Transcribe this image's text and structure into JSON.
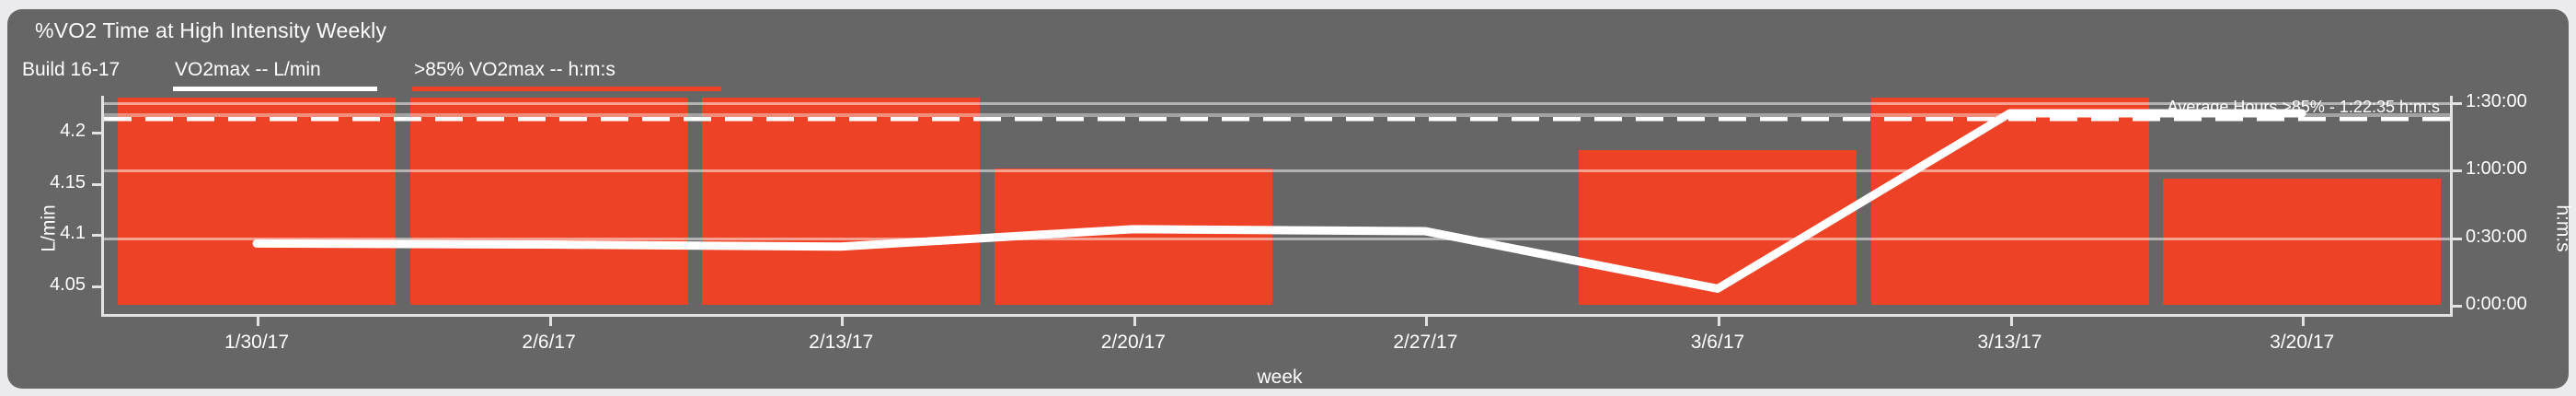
{
  "page": {
    "background": "#ebebed",
    "card_background": "#666667",
    "text_color": "#ffffff",
    "accent_red": "#ee4226",
    "gridline_color": "rgba(255,255,255,0.5)"
  },
  "header": {
    "title": "%VO2 Time at High Intensity Weekly",
    "subtitle": "Build 16-17"
  },
  "legend": {
    "items": [
      {
        "label": "VO2max  -- L/min",
        "color": "#ffffff"
      },
      {
        "label": ">85% VO2max  -- h:m:s",
        "color": "#ee4226"
      }
    ]
  },
  "annotation": {
    "text": "Average Hours >85% - 1:22:35 h:m:s"
  },
  "chart_data": {
    "type": "bar",
    "subtype": "bar+line dual-axis",
    "title": "%VO2 Time at High Intensity Weekly",
    "categories": [
      "1/30/17",
      "2/6/17",
      "2/13/17",
      "2/20/17",
      "2/27/17",
      "3/6/17",
      "3/13/17",
      "3/20/17"
    ],
    "series": [
      {
        "name": ">85% VO2max",
        "type": "bar",
        "axis": "right",
        "unit": "h:m:s",
        "color": "#ee4226",
        "values_hms": [
          "1:32:00",
          "1:32:00",
          "1:32:00",
          "1:00:30",
          "0:00:00",
          "1:08:45",
          "1:32:00",
          "0:56:00"
        ],
        "values_minutes": [
          92,
          92,
          92,
          60.5,
          0,
          68.75,
          92,
          56
        ]
      },
      {
        "name": "VO2max",
        "type": "line",
        "axis": "left",
        "unit": "L/min",
        "color": "#ffffff",
        "values": [
          4.091,
          4.09,
          4.088,
          4.105,
          4.103,
          4.047,
          4.218,
          4.218
        ]
      }
    ],
    "x_axis": {
      "title": "week"
    },
    "left_axis": {
      "title": "L/min",
      "ticks": [
        4.05,
        4.1,
        4.15,
        4.2
      ],
      "range": [
        4.02,
        4.235
      ]
    },
    "right_axis": {
      "title": "h:m:s",
      "ticks": [
        "0:00:00",
        "0:30:00",
        "1:00:00",
        "1:30:00"
      ],
      "tick_minutes": [
        0,
        30,
        60,
        90
      ],
      "range_minutes": [
        -4.1,
        92.9
      ]
    },
    "average_line": {
      "style": "dashed",
      "minutes": 82.583,
      "label": "1:22:35",
      "annotation": "Average Hours >85% - 1:22:35 h:m:s"
    },
    "reference_line": {
      "style": "solid-faint",
      "minutes": 85.3
    },
    "grid": true,
    "legend_position": "top-left"
  }
}
